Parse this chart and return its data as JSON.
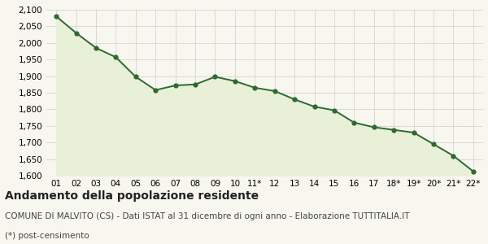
{
  "x_labels": [
    "01",
    "02",
    "03",
    "04",
    "05",
    "06",
    "07",
    "08",
    "09",
    "10",
    "11*",
    "12",
    "13",
    "14",
    "15",
    "16",
    "17",
    "18*",
    "19*",
    "20*",
    "21*",
    "22*"
  ],
  "y_values": [
    2080,
    2030,
    1985,
    1957,
    1898,
    1858,
    1872,
    1875,
    1898,
    1885,
    1865,
    1855,
    1830,
    1808,
    1797,
    1760,
    1746,
    1738,
    1730,
    1695,
    1660,
    1613
  ],
  "line_color": "#2d6a2d",
  "fill_color": "#e8f0d8",
  "marker_color": "#2d6a2d",
  "background_color": "#f7f7f0",
  "grid_color": "#cccccc",
  "ylim": [
    1600,
    2100
  ],
  "yticks": [
    1600,
    1650,
    1700,
    1750,
    1800,
    1850,
    1900,
    1950,
    2000,
    2050,
    2100
  ],
  "title": "Andamento della popolazione residente",
  "subtitle": "COMUNE DI MALVITO (CS) - Dati ISTAT al 31 dicembre di ogni anno - Elaborazione TUTTITALIA.IT",
  "footnote": "(*) post-censimento",
  "title_fontsize": 10,
  "subtitle_fontsize": 7.5,
  "footnote_fontsize": 7.5,
  "tick_fontsize": 7.5,
  "marker_size": 4.5,
  "linewidth": 1.4
}
